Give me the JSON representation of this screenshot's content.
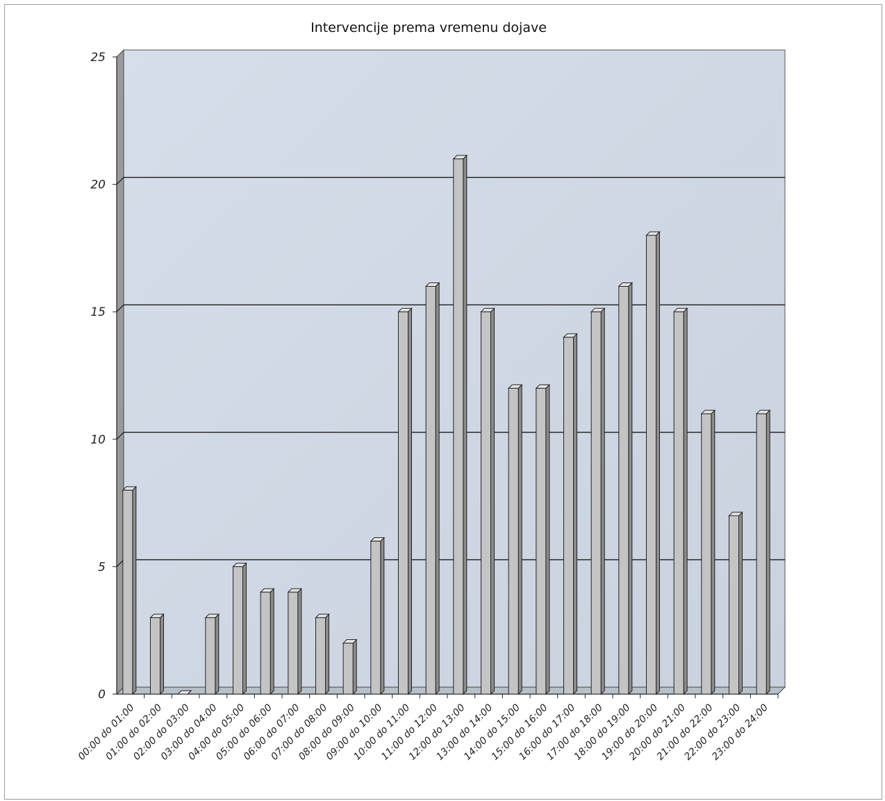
{
  "chart_data": {
    "type": "bar",
    "title": "Intervencije prema vremenu dojave",
    "xlabel": "",
    "ylabel": "",
    "ylim": [
      0,
      25
    ],
    "yticks": [
      "0",
      "5",
      "10",
      "15",
      "20",
      "25"
    ],
    "grid": true,
    "legend": "none",
    "categories": [
      "00:00 do 01:00",
      "01:00 do 02:00",
      "02:00 do 03:00",
      "03:00 do 04:00",
      "04:00 do 05:00",
      "05:00 do 06:00",
      "06:00 do 07:00",
      "07:00 do 08:00",
      "08:00 do 09:00",
      "09:00 do 10:00",
      "10:00 do 11:00",
      "11:00 do 12:00",
      "12:00 do 13:00",
      "13:00 do 14:00",
      "14:00 do 15:00",
      "15:00 do 16:00",
      "16:00 do 17:00",
      "17:00 do 18:00",
      "18:00 do 19:00",
      "19:00 do 20:00",
      "20:00 do 21:00",
      "21:00 do 22:00",
      "22:00 do 23:00",
      "23:00 do 24:00"
    ],
    "values": [
      8,
      3,
      0,
      3,
      5,
      4,
      4,
      3,
      2,
      6,
      15,
      16,
      21,
      15,
      12,
      12,
      14,
      15,
      16,
      18,
      15,
      11,
      7,
      11
    ],
    "colors": {
      "plot_background": "#cfd8e4",
      "bar_front": "#c4c4c4",
      "bar_side": "#8c8c8c",
      "bar_top": "#e6e6e6",
      "side_wall": "#9a9a9a",
      "gridline": "#1a1a1a"
    }
  }
}
